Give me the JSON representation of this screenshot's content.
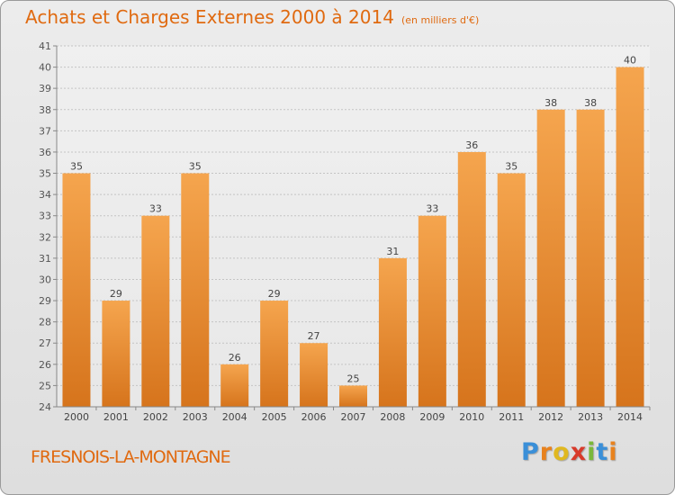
{
  "header": {
    "title": "Achats et Charges Externes 2000 à 2014",
    "unit": "(en milliers d'€)"
  },
  "footer": {
    "commune": "FRESNOIS-LA-MONTAGNE",
    "logo": [
      "P",
      "r",
      "o",
      "x",
      "i",
      "t",
      "i"
    ],
    "logo_colors": [
      "#3a8fd8",
      "#e8821e",
      "#e0b820",
      "#d83a2a",
      "#7ab83a",
      "#3a8fd8",
      "#e8821e"
    ]
  },
  "colors": {
    "bar_light": "#f5a54e",
    "bar_dark": "#d6741c",
    "accent": "#e06a10",
    "grid": "#c4c4c4"
  },
  "chart_data": {
    "type": "bar",
    "title": "Achats et Charges Externes 2000 à 2014",
    "subtitle": "(en milliers d'€)",
    "categories": [
      "2000",
      "2001",
      "2002",
      "2003",
      "2004",
      "2005",
      "2006",
      "2007",
      "2008",
      "2009",
      "2010",
      "2011",
      "2012",
      "2013",
      "2014"
    ],
    "values": [
      35,
      29,
      33,
      35,
      26,
      29,
      27,
      25,
      31,
      33,
      36,
      35,
      38,
      38,
      40
    ],
    "ylim": [
      24,
      41
    ],
    "yticks": [
      24,
      25,
      26,
      27,
      28,
      29,
      30,
      31,
      32,
      33,
      34,
      35,
      36,
      37,
      38,
      39,
      40,
      41
    ],
    "grid": true,
    "xlabel": "",
    "ylabel": ""
  }
}
